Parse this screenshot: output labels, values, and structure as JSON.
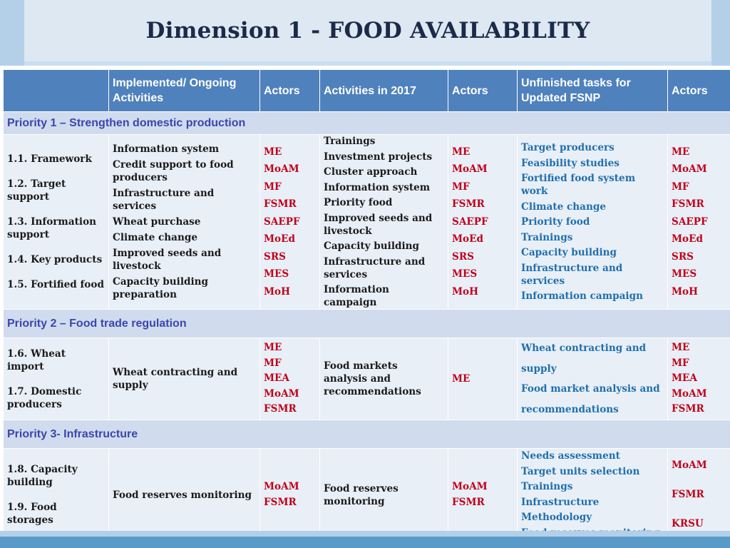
{
  "title": "Dimension 1 - FOOD AVAILABILITY",
  "header": [
    "",
    "Implemented/ Ongoing Activities",
    "Actors",
    "Activities in 2017",
    "Actors",
    "Unfinished tasks for Updated FSNP",
    "Actors"
  ],
  "priorities": [
    {
      "label": "Priority 1 – Strengthen domestic production",
      "dimensions": [
        "1.1. Framework",
        "1.2. Target support",
        "1.3. Information support",
        "1.4. Key products",
        "1.5. Fortified food"
      ],
      "implemented": [
        "Information system",
        "Credit support to food producers",
        "Infrastructure and services",
        "Wheat purchase",
        "Climate change",
        "Improved seeds and livestock",
        "Capacity building preparation"
      ],
      "actors1": [
        "ME",
        "MoAM",
        "MF",
        "FSMR",
        "SAEPF",
        "MoEd",
        "SRS",
        "MES",
        "MoH"
      ],
      "activities2017": [
        "Trainings",
        "Investment projects",
        "Cluster approach",
        "Information system",
        "Priority food",
        "Improved seeds and livestock",
        "Capacity building",
        "Infrastructure and services",
        "Information campaign"
      ],
      "actors2": [
        "ME",
        "MoAM",
        "MF",
        "FSMR",
        "SAEPF",
        "MoEd",
        "SRS",
        "MES",
        "MoH"
      ],
      "unfinished": [
        "Target producers",
        "Feasibility studies",
        "Fortified food system work",
        "Climate change",
        "Priority food",
        "Trainings",
        "Capacity building",
        "Infrastructure and services",
        "Information campaign"
      ],
      "actors3": [
        "ME",
        "MoAM",
        "MF",
        "FSMR",
        "SAEPF",
        "MoEd",
        "SRS",
        "MES",
        "MoH"
      ]
    },
    {
      "label": "Priority 2 – Food trade regulation",
      "dimensions": [
        "1.6. Wheat import",
        "1.7. Domestic producers"
      ],
      "implemented": [
        "Wheat contracting and supply"
      ],
      "actors1": [
        "ME",
        "MF",
        "MEA",
        "MoAM",
        "FSMR"
      ],
      "activities2017": [
        "Food markets analysis and recommendations"
      ],
      "actors2": [
        "ME"
      ],
      "unfinished": [
        "Wheat contracting and",
        "supply",
        "Food market analysis and",
        "recommendations"
      ],
      "actors3": [
        "ME",
        "MF",
        "MEA",
        "MoAM",
        "FSMR"
      ]
    },
    {
      "label": "Priority 3- Infrastructure",
      "dimensions": [
        "1.8. Capacity building",
        "1.9. Food storages"
      ],
      "implemented": [
        "Food reserves monitoring"
      ],
      "actors1": [
        "MoAM",
        "FSMR"
      ],
      "activities2017": [
        "Food reserves monitoring"
      ],
      "actors2": [
        "MoAM",
        "FSMR"
      ],
      "unfinished": [
        "Needs assessment",
        "Target units selection",
        "Trainings",
        "Infrastructure",
        "Methodology",
        "Food reserves monitoring"
      ],
      "actors3": [
        "MoAM",
        "FSMR",
        "KRSU"
      ]
    }
  ],
  "colors": {
    "header_bg": "#4f81bd",
    "priority_bg": "#d0dced",
    "priority_text": "#3c45b0",
    "cell_bg": "#e9eff7",
    "actor_red": "#c0001a",
    "task_blue": "#1f6fae"
  }
}
